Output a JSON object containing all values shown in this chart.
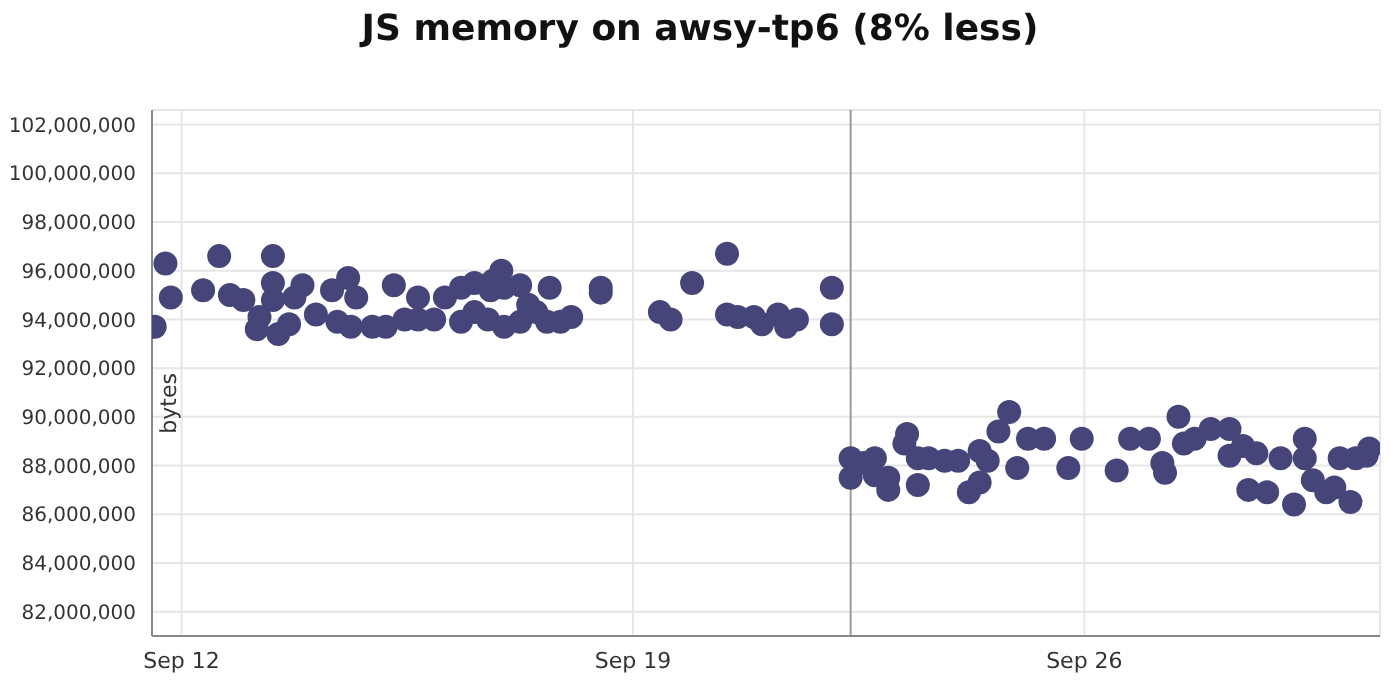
{
  "chart_data": {
    "type": "scatter",
    "title": "JS memory on awsy-tp6 (8% less)",
    "ylabel": "bytes",
    "x": [
      "--09-11T14:00",
      "--09-11T18:00",
      "--09-11T20:00",
      "--09-12T08:00",
      "--09-12T14:00",
      "--09-12T18:00",
      "--09-12T23:00",
      "--09-13T05:00",
      "--09-13T04:00",
      "--09-13T10:00",
      "--09-13T10:00",
      "--09-13T10:00",
      "--09-13T12:00",
      "--09-13T16:00",
      "--09-13T18:00",
      "--09-13T21:00",
      "--09-14T02:00",
      "--09-14T08:00",
      "--09-14T10:00",
      "--09-14T14:00",
      "--09-14T15:00",
      "--09-14T17:00",
      "--09-14T23:00",
      "--09-15T04:00",
      "--09-15T07:00",
      "--09-15T11:00",
      "--09-15T16:00",
      "--09-15T16:00",
      "--09-15T22:00",
      "--09-16T02:00",
      "--09-16T08:00",
      "--09-16T08:00",
      "--09-16T13:00",
      "--09-16T13:00",
      "--09-16T18:00",
      "--09-16T19:00",
      "--09-16T20:00",
      "--09-16T23:00",
      "--09-17T00:00",
      "--09-17T00:00",
      "--09-17T06:00",
      "--09-17T06:00",
      "--09-17T09:00",
      "--09-17T12:00",
      "--09-17T16:00",
      "--09-17T17:00",
      "--09-17T21:00",
      "--09-18T01:00",
      "--09-18T12:00",
      "--09-18T12:00",
      "--09-19T10:00",
      "--09-19T14:00",
      "--09-19T22:00",
      "--09-20T11:00",
      "--09-20T11:00",
      "--09-20T15:00",
      "--09-20T21:00",
      "--09-21T00:00",
      "--09-21T06:00",
      "--09-21T09:00",
      "--09-21T13:00",
      "--09-22T02:00",
      "--09-22T02:00",
      "--09-22T09:00",
      "--09-22T09:00",
      "--09-22T14:00",
      "--09-22T18:00",
      "--09-22T18:00",
      "--09-22T23:00",
      "--09-22T23:00",
      "--09-23T05:00",
      "--09-23T06:00",
      "--09-23T10:00",
      "--09-23T10:00",
      "--09-23T14:00",
      "--09-23T20:00",
      "--09-24T01:00",
      "--09-24T05:00",
      "--09-24T09:00",
      "--09-24T09:00",
      "--09-24T12:00",
      "--09-24T16:00",
      "--09-24T20:00",
      "--09-24T23:00",
      "--09-25T03:00",
      "--09-25T09:00",
      "--09-25T18:00",
      "--09-25T23:00",
      "--09-26T12:00",
      "--09-26T17:00",
      "--09-27T00:00",
      "--09-27T05:00",
      "--09-27T06:00",
      "--09-27T11:00",
      "--09-27T13:00",
      "--09-27T17:00",
      "--09-27T23:00",
      "--09-28T06:00",
      "--09-28T06:00",
      "--09-28T11:00",
      "--09-28T13:00",
      "--09-28T16:00",
      "--09-28T20:00",
      "--09-29T01:00",
      "--09-29T06:00",
      "--09-29T10:00",
      "--09-29T10:00",
      "--09-29T13:00",
      "--09-29T18:00",
      "--09-29T21:00",
      "--09-29T23:00",
      "--09-30T03:00",
      "--09-30T05:00",
      "--09-30T09:00",
      "--09-30T10:00"
    ],
    "values": [
      93700000,
      96300000,
      94900000,
      95200000,
      96600000,
      95000000,
      94800000,
      94100000,
      93600000,
      96600000,
      95500000,
      94800000,
      93400000,
      93800000,
      94900000,
      95400000,
      94200000,
      95200000,
      93900000,
      95700000,
      93700000,
      94900000,
      93700000,
      93700000,
      95400000,
      94000000,
      94000000,
      94900000,
      94000000,
      94900000,
      95300000,
      93900000,
      95500000,
      94300000,
      94000000,
      95200000,
      95600000,
      96000000,
      93700000,
      95300000,
      95400000,
      93900000,
      94600000,
      94300000,
      93900000,
      95300000,
      93900000,
      94100000,
      95300000,
      95100000,
      94300000,
      94000000,
      95500000,
      96700000,
      94200000,
      94100000,
      94100000,
      93800000,
      94200000,
      93700000,
      94000000,
      95300000,
      93800000,
      88300000,
      87500000,
      88100000,
      88300000,
      87600000,
      87500000,
      87000000,
      88900000,
      89300000,
      88300000,
      87200000,
      88300000,
      88200000,
      88200000,
      86900000,
      87300000,
      88600000,
      88200000,
      89400000,
      90200000,
      87900000,
      89100000,
      89100000,
      87900000,
      89100000,
      87800000,
      89100000,
      89100000,
      88100000,
      87700000,
      90000000,
      88900000,
      89100000,
      89500000,
      89500000,
      88400000,
      88800000,
      87000000,
      88500000,
      86900000,
      88300000,
      86400000,
      89100000,
      88300000,
      87400000,
      86900000,
      87100000,
      88300000,
      86500000,
      88300000,
      88400000,
      88700000
    ],
    "color": "#45457a",
    "marker": "circle",
    "xlim": [
      "--09-11T13:00",
      "--09-30T14:00"
    ],
    "xticks": [
      {
        "value": "--09-12",
        "label": "Sep 12"
      },
      {
        "value": "--09-19",
        "label": "Sep 19"
      },
      {
        "value": "--09-26",
        "label": "Sep 26"
      }
    ],
    "ylim": [
      81000000,
      102600000
    ],
    "yticks": [
      {
        "value": 82000000,
        "label": "82,000,000"
      },
      {
        "value": 84000000,
        "label": "84,000,000"
      },
      {
        "value": 86000000,
        "label": "86,000,000"
      },
      {
        "value": 88000000,
        "label": "88,000,000"
      },
      {
        "value": 90000000,
        "label": "90,000,000"
      },
      {
        "value": 92000000,
        "label": "92,000,000"
      },
      {
        "value": 94000000,
        "label": "94,000,000"
      },
      {
        "value": 96000000,
        "label": "96,000,000"
      },
      {
        "value": 98000000,
        "label": "98,000,000"
      },
      {
        "value": 100000000,
        "label": "100,000,000"
      },
      {
        "value": 102000000,
        "label": "102,000,000"
      }
    ],
    "grid": true,
    "ref_lines": [
      {
        "axis": "x",
        "value": "--09-22T09:00",
        "color": "#999999"
      }
    ]
  }
}
